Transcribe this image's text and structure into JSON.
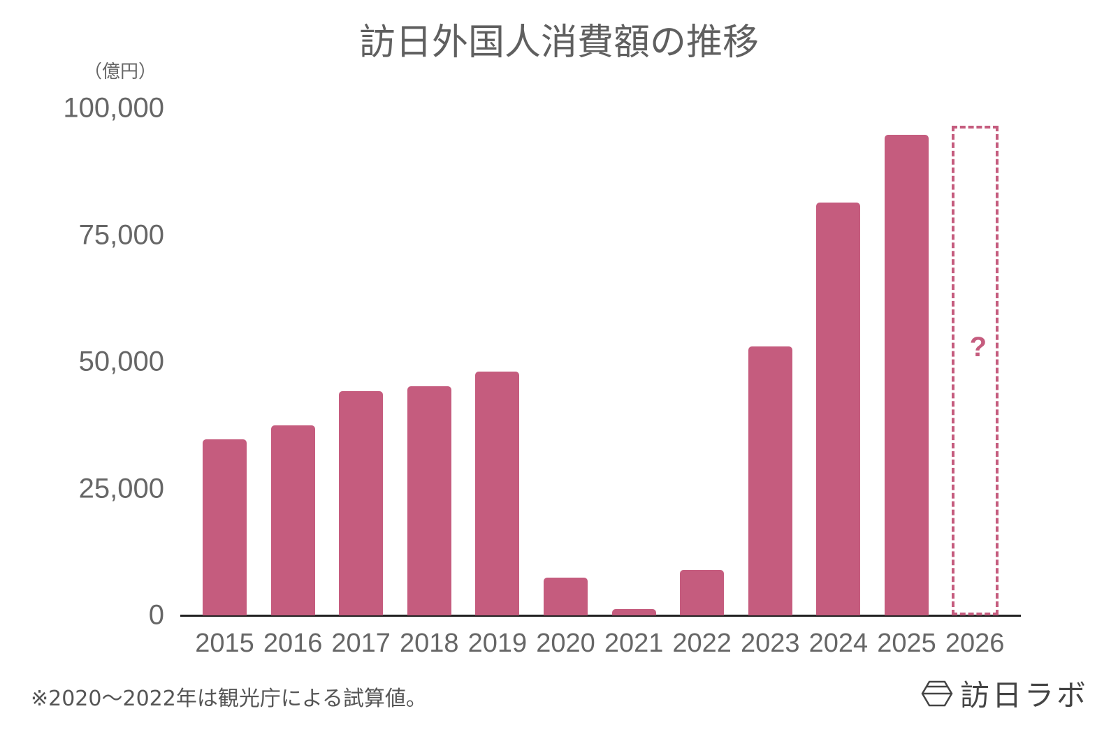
{
  "title": "訪日外国人消費額の推移",
  "unit_label": "（億円）",
  "footnote": "※2020〜2022年は観光庁による試算値。",
  "brand": {
    "name": "訪日ラボ",
    "icon": "hexagon-logo-icon"
  },
  "colors": {
    "bar": "#c55c7e",
    "axis": "#222222",
    "text": "#666666"
  },
  "chart_data": {
    "type": "bar",
    "title": "訪日外国人消費額の推移",
    "xlabel": "",
    "ylabel": "（億円）",
    "ylim": [
      0,
      100000
    ],
    "yticks": [
      "0",
      "25,000",
      "50,000",
      "75,000",
      "100,000"
    ],
    "grid": false,
    "categories": [
      "2015",
      "2016",
      "2017",
      "2018",
      "2019",
      "2020",
      "2021",
      "2022",
      "2023",
      "2024",
      "2025",
      "2026"
    ],
    "values": [
      34771,
      37476,
      44162,
      45189,
      48135,
      7446,
      1208,
      8987,
      53065,
      81395,
      94700,
      null
    ],
    "annotations": [
      {
        "category": "2026",
        "text": "?",
        "style": "dashed outline placeholder"
      }
    ],
    "legend": null
  }
}
